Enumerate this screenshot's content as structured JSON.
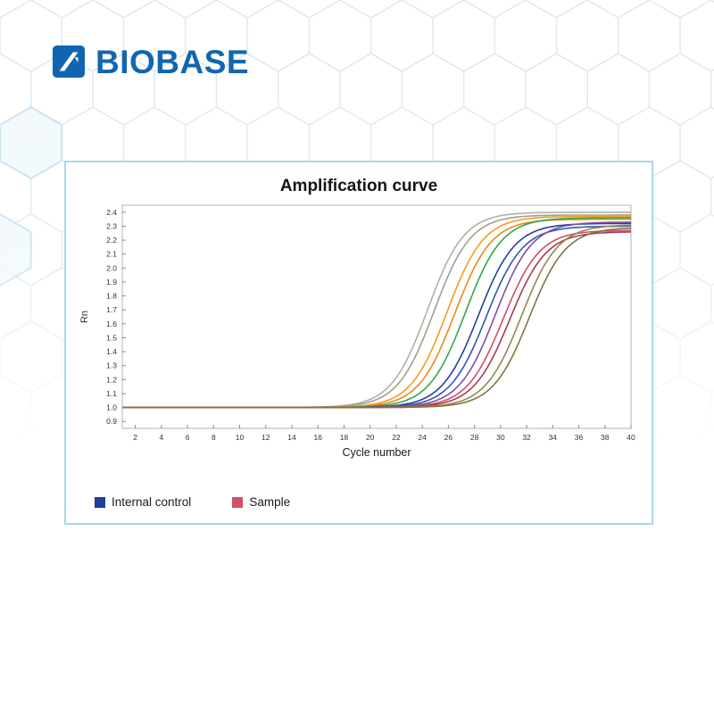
{
  "logo": {
    "text": "BIOBASE",
    "color": "#1266b1",
    "icon": "biobase-square-mark"
  },
  "panel": {
    "title": "Amplification curve",
    "border_color": "#a6d9ec",
    "legend": [
      {
        "label": "Internal control",
        "color": "#1d3e99"
      },
      {
        "label": "Sample",
        "color": "#d05068"
      }
    ]
  },
  "chart_data": {
    "type": "line",
    "title": "Amplification curve",
    "xlabel": "Cycle number",
    "ylabel": "Rn",
    "xlim": [
      1,
      40
    ],
    "ylim": [
      0.85,
      2.45
    ],
    "x_ticks": [
      2,
      4,
      6,
      8,
      10,
      12,
      14,
      16,
      18,
      20,
      22,
      24,
      26,
      28,
      30,
      32,
      34,
      36,
      38,
      40
    ],
    "y_ticks": [
      0.9,
      1.0,
      1.1,
      1.2,
      1.3,
      1.4,
      1.5,
      1.6,
      1.7,
      1.8,
      1.9,
      2.0,
      2.1,
      2.2,
      2.3,
      2.4
    ],
    "grid": false,
    "legend_position": "bottom-left",
    "baseline": 1.0,
    "slope": 1.4,
    "curve_model": "y = baseline + (plateau - baseline) / (1 + exp(-(x - ct)/slope))",
    "series": [
      {
        "name": "gray-1",
        "color": "#b3afa4",
        "ct": 24.4,
        "plateau": 2.4
      },
      {
        "name": "gray-2",
        "color": "#a29e93",
        "ct": 24.9,
        "plateau": 2.38
      },
      {
        "name": "orange-1",
        "color": "#f59b22",
        "ct": 25.9,
        "plateau": 2.37
      },
      {
        "name": "amber-1",
        "color": "#e6891c",
        "ct": 26.5,
        "plateau": 2.35
      },
      {
        "name": "green-1",
        "color": "#35a64a",
        "ct": 27.3,
        "plateau": 2.36
      },
      {
        "name": "blue-1",
        "color": "#24409e",
        "ct": 28.3,
        "plateau": 2.32
      },
      {
        "name": "blue-2",
        "color": "#3056b8",
        "ct": 28.9,
        "plateau": 2.3
      },
      {
        "name": "purple-1",
        "color": "#7e4fa5",
        "ct": 29.6,
        "plateau": 2.33
      },
      {
        "name": "rose-1",
        "color": "#cc4f6b",
        "ct": 30.2,
        "plateau": 2.27
      },
      {
        "name": "darkred-1",
        "color": "#a53a52",
        "ct": 30.7,
        "plateau": 2.26
      },
      {
        "name": "olive-1",
        "color": "#938948",
        "ct": 31.6,
        "plateau": 2.31
      },
      {
        "name": "olive-2",
        "color": "#7f7540",
        "ct": 32.2,
        "plateau": 2.29
      }
    ]
  }
}
